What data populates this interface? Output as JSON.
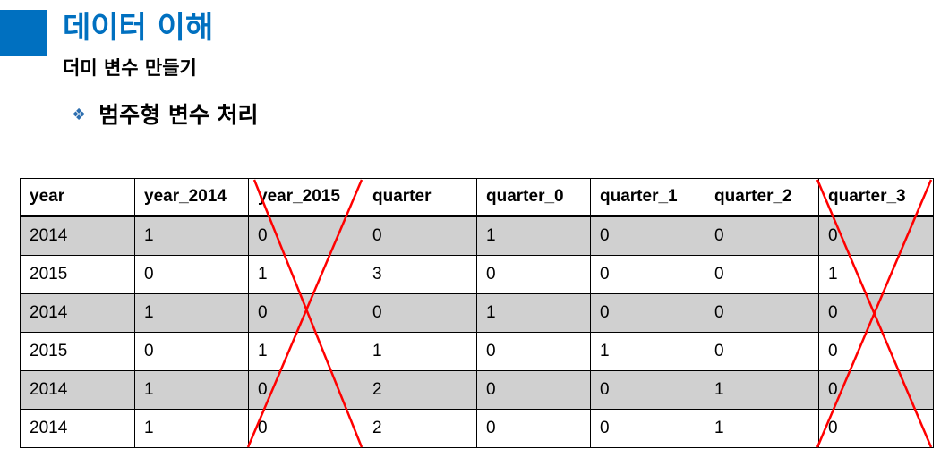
{
  "header": {
    "title": "데이터 이해",
    "subtitle": "더미 변수 만들기"
  },
  "section": {
    "bullet_glyph": "❖",
    "heading": "범주형 변수 처리"
  },
  "table": {
    "columns": [
      "year",
      "year_2014",
      "year_2015",
      "quarter",
      "quarter_0",
      "quarter_1",
      "quarter_2",
      "quarter_3"
    ],
    "rows": [
      [
        "2014",
        "1",
        "0",
        "0",
        "1",
        "0",
        "0",
        "0"
      ],
      [
        "2015",
        "0",
        "1",
        "3",
        "0",
        "0",
        "0",
        "1"
      ],
      [
        "2014",
        "1",
        "0",
        "0",
        "1",
        "0",
        "0",
        "0"
      ],
      [
        "2015",
        "0",
        "1",
        "1",
        "0",
        "1",
        "0",
        "0"
      ],
      [
        "2014",
        "1",
        "0",
        "2",
        "0",
        "0",
        "1",
        "0"
      ],
      [
        "2014",
        "1",
        "0",
        "2",
        "0",
        "0",
        "1",
        "0"
      ]
    ],
    "crossed_out_columns": [
      "year_2015",
      "quarter_3"
    ],
    "row_shading": [
      "gray",
      "white",
      "gray",
      "white",
      "gray",
      "white"
    ]
  },
  "colors": {
    "accent": "#0070c0",
    "bullet": "#2e6fb0",
    "shaded_row": "#d0d0d0",
    "strike": "#ff0000"
  }
}
